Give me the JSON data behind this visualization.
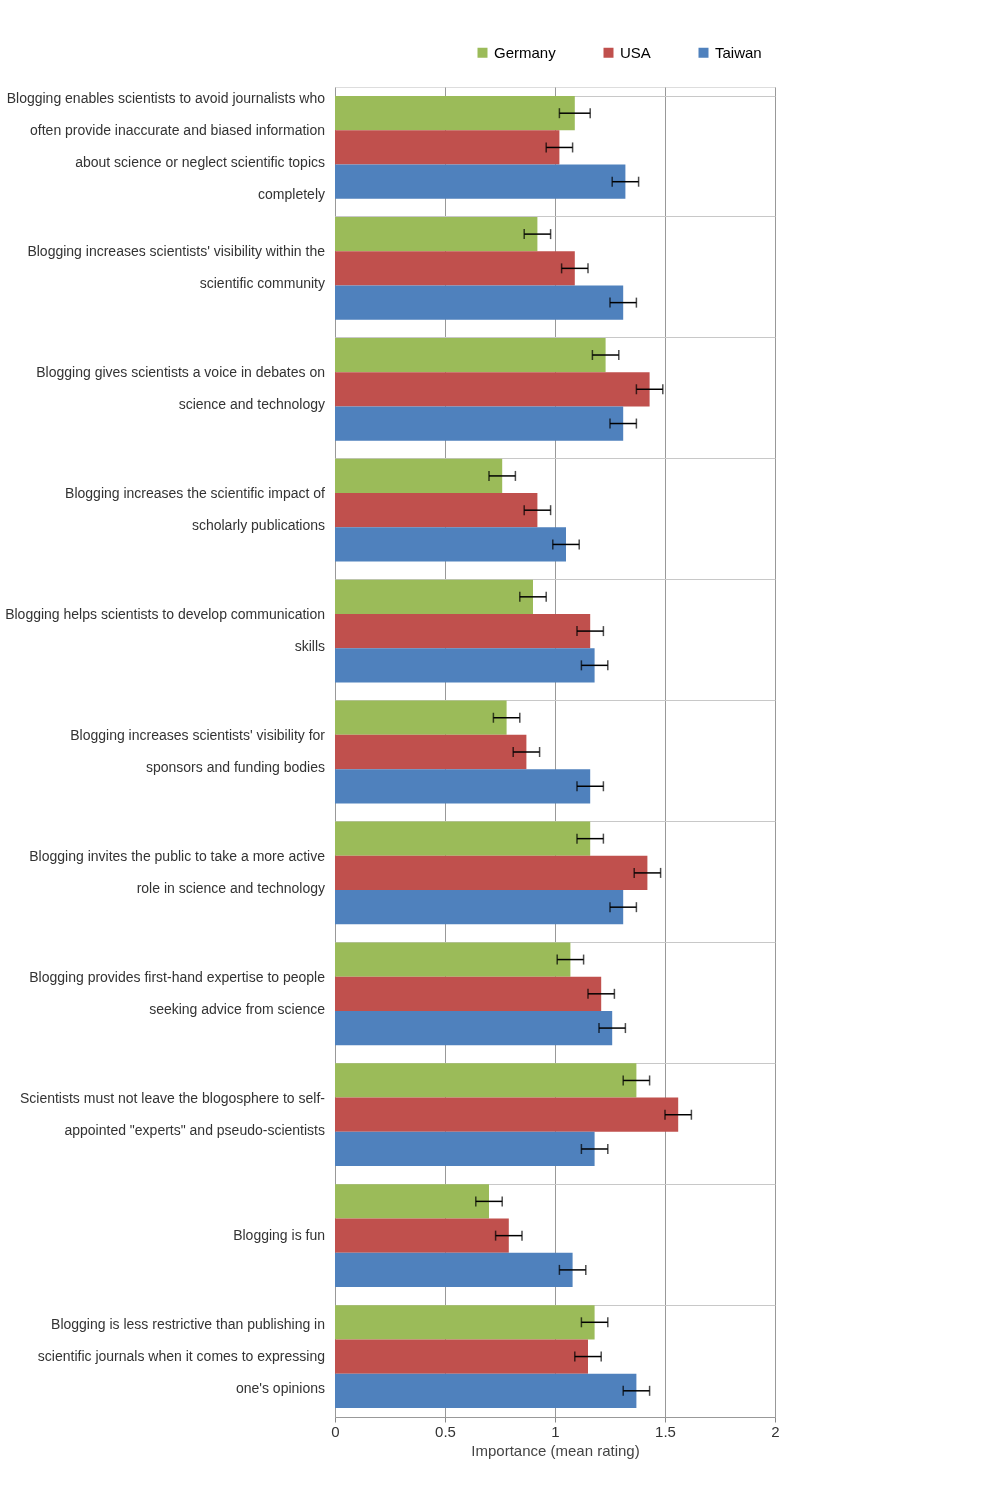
{
  "chart_data": {
    "type": "bar",
    "orientation": "horizontal",
    "xlabel": "Importance (mean rating)",
    "categories": [
      "Blogging enables scientists to avoid journalists who often provide inaccurate and biased information about science or neglect scientific topics completely",
      "Blogging increases scientists' visibility within the scientific community",
      "Blogging gives scientists a voice in debates on science and technology",
      "Blogging increases the scientific impact of scholarly publications",
      "Blogging helps scientists to develop communication skills",
      "Blogging increases scientists' visibility for sponsors and funding bodies",
      "Blogging invites the public to take a more active role in science and technology",
      "Blogging provides first-hand expertise to people seeking advice from science",
      "Scientists must not leave the blogosphere to self-appointed \"experts\" and pseudo-scientists",
      "Blogging is fun",
      "Blogging is less restrictive than publishing in scientific journals when it comes to expressing one's opinions"
    ],
    "series": [
      {
        "name": "Germany",
        "color": "#9bbb59",
        "values": [
          1.09,
          0.92,
          1.23,
          0.76,
          0.9,
          0.78,
          1.16,
          1.07,
          1.37,
          0.7,
          1.18
        ],
        "errors": [
          0.07,
          0.06,
          0.06,
          0.06,
          0.06,
          0.06,
          0.06,
          0.06,
          0.06,
          0.06,
          0.06
        ]
      },
      {
        "name": "USA",
        "color": "#c0504d",
        "values": [
          1.02,
          1.09,
          1.43,
          0.92,
          1.16,
          0.87,
          1.42,
          1.21,
          1.56,
          0.79,
          1.15
        ],
        "errors": [
          0.06,
          0.06,
          0.06,
          0.06,
          0.06,
          0.06,
          0.06,
          0.06,
          0.06,
          0.06,
          0.06
        ]
      },
      {
        "name": "Taiwan",
        "color": "#4f81bd",
        "values": [
          1.32,
          1.31,
          1.31,
          1.05,
          1.18,
          1.16,
          1.31,
          1.26,
          1.18,
          1.08,
          1.37
        ],
        "errors": [
          0.06,
          0.06,
          0.06,
          0.06,
          0.06,
          0.06,
          0.06,
          0.06,
          0.06,
          0.06,
          0.06
        ]
      }
    ],
    "xlim": [
      0,
      2
    ],
    "xticks": [
      0,
      0.5,
      1,
      1.5,
      2
    ],
    "grid": true,
    "legend": "top right"
  }
}
